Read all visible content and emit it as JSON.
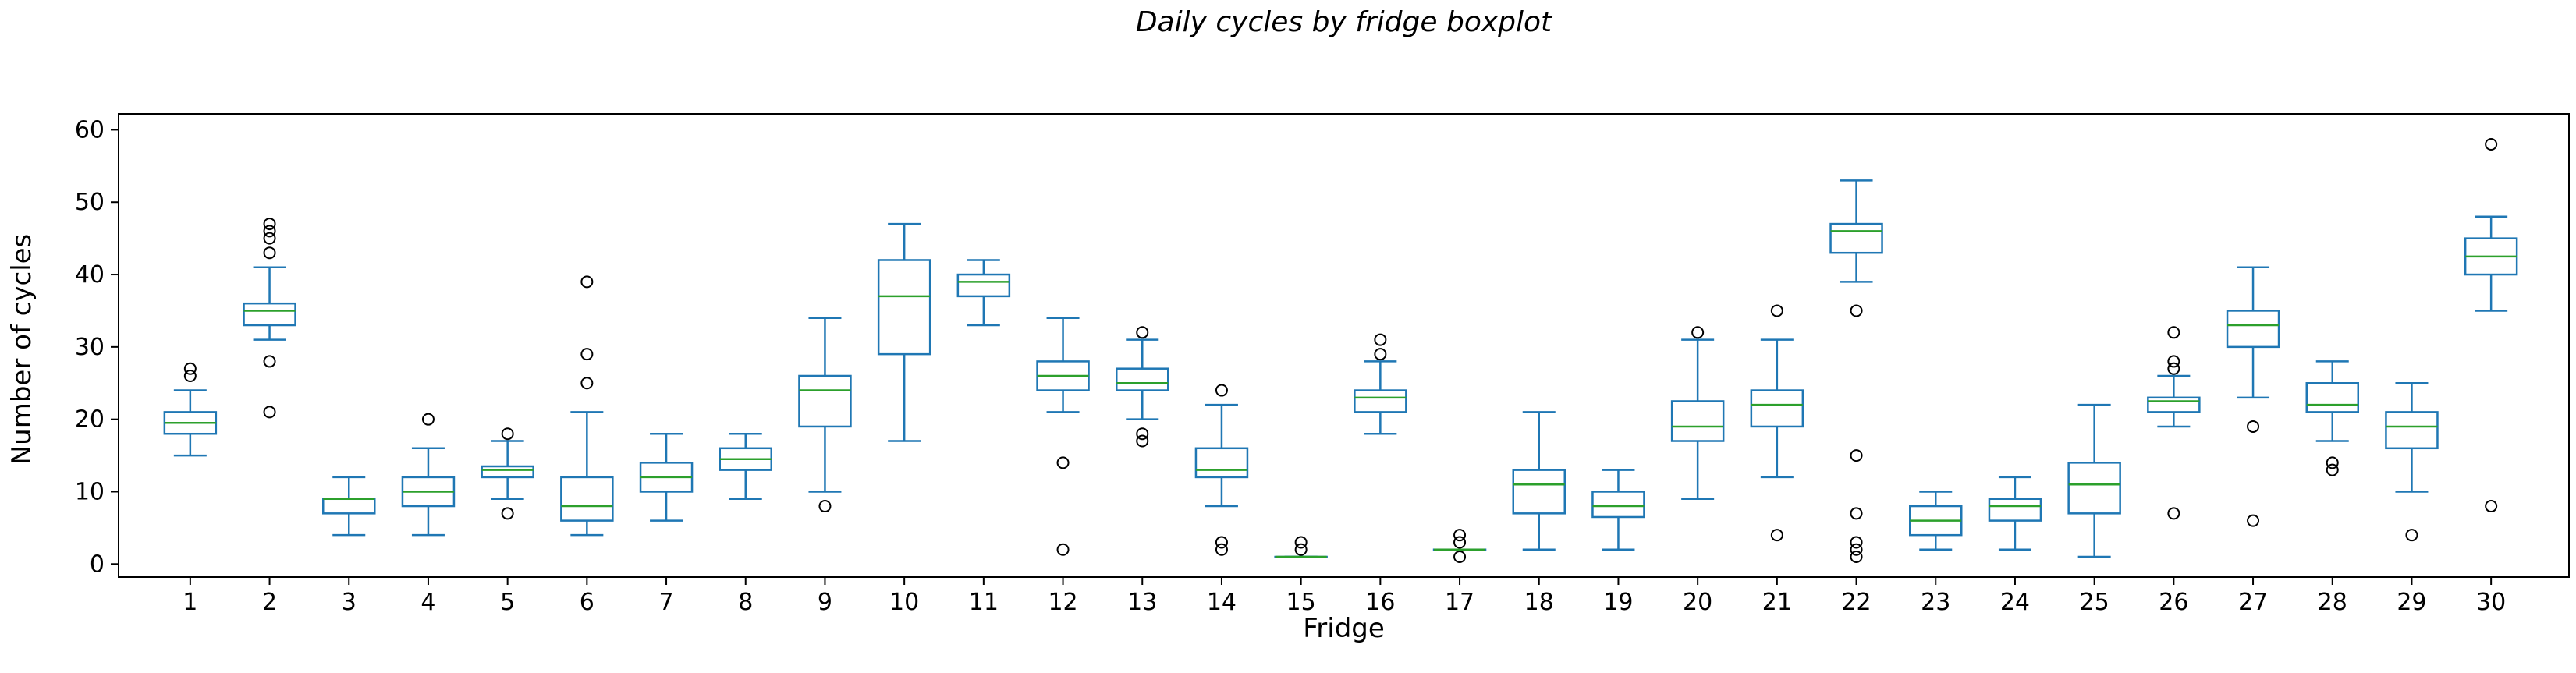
{
  "chart_data": {
    "type": "boxplot",
    "title": "Daily cycles by fridge boxplot",
    "xlabel": "Fridge",
    "ylabel": "Number of cycles",
    "ylim": [
      -2,
      62
    ],
    "yticks": [
      0,
      10,
      20,
      30,
      40,
      50,
      60
    ],
    "grid": false,
    "colors": {
      "box": "#1f77b4",
      "whisker": "#1f77b4",
      "cap": "#1f77b4",
      "median": "#2ca02c",
      "outlier": "#000000",
      "axis": "#000000"
    },
    "categories": [
      "1",
      "2",
      "3",
      "4",
      "5",
      "6",
      "7",
      "8",
      "9",
      "10",
      "11",
      "12",
      "13",
      "14",
      "15",
      "16",
      "17",
      "18",
      "19",
      "20",
      "21",
      "22",
      "23",
      "24",
      "25",
      "26",
      "27",
      "28",
      "29",
      "30"
    ],
    "boxes": [
      {
        "category": "1",
        "whisker_low": 15,
        "q1": 18,
        "median": 19.5,
        "q3": 21,
        "whisker_high": 24,
        "outliers": [
          26,
          27
        ]
      },
      {
        "category": "2",
        "whisker_low": 31,
        "q1": 33,
        "median": 35,
        "q3": 36,
        "whisker_high": 41,
        "outliers": [
          21,
          28,
          43,
          45,
          46,
          47
        ]
      },
      {
        "category": "3",
        "whisker_low": 4,
        "q1": 7,
        "median": 9,
        "q3": 9,
        "whisker_high": 12,
        "outliers": []
      },
      {
        "category": "4",
        "whisker_low": 4,
        "q1": 8,
        "median": 10,
        "q3": 12,
        "whisker_high": 16,
        "outliers": [
          20
        ]
      },
      {
        "category": "5",
        "whisker_low": 9,
        "q1": 12,
        "median": 13,
        "q3": 13.5,
        "whisker_high": 17,
        "outliers": [
          7,
          18
        ]
      },
      {
        "category": "6",
        "whisker_low": 4,
        "q1": 6,
        "median": 8,
        "q3": 12,
        "whisker_high": 21,
        "outliers": [
          25,
          29,
          39
        ]
      },
      {
        "category": "7",
        "whisker_low": 6,
        "q1": 10,
        "median": 12,
        "q3": 14,
        "whisker_high": 18,
        "outliers": []
      },
      {
        "category": "8",
        "whisker_low": 9,
        "q1": 13,
        "median": 14.5,
        "q3": 16,
        "whisker_high": 18,
        "outliers": []
      },
      {
        "category": "9",
        "whisker_low": 10,
        "q1": 19,
        "median": 24,
        "q3": 26,
        "whisker_high": 34,
        "outliers": [
          8
        ]
      },
      {
        "category": "10",
        "whisker_low": 17,
        "q1": 29,
        "median": 37,
        "q3": 42,
        "whisker_high": 47,
        "outliers": []
      },
      {
        "category": "11",
        "whisker_low": 33,
        "q1": 37,
        "median": 39,
        "q3": 40,
        "whisker_high": 42,
        "outliers": []
      },
      {
        "category": "12",
        "whisker_low": 21,
        "q1": 24,
        "median": 26,
        "q3": 28,
        "whisker_high": 34,
        "outliers": [
          2,
          14
        ]
      },
      {
        "category": "13",
        "whisker_low": 20,
        "q1": 24,
        "median": 25,
        "q3": 27,
        "whisker_high": 31,
        "outliers": [
          17,
          18,
          32
        ]
      },
      {
        "category": "14",
        "whisker_low": 8,
        "q1": 12,
        "median": 13,
        "q3": 16,
        "whisker_high": 22,
        "outliers": [
          2,
          3,
          24
        ]
      },
      {
        "category": "15",
        "whisker_low": 1,
        "q1": 1,
        "median": 1,
        "q3": 1,
        "whisker_high": 1,
        "outliers": [
          2,
          3
        ]
      },
      {
        "category": "16",
        "whisker_low": 18,
        "q1": 21,
        "median": 23,
        "q3": 24,
        "whisker_high": 28,
        "outliers": [
          29,
          31
        ]
      },
      {
        "category": "17",
        "whisker_low": 2,
        "q1": 2,
        "median": 2,
        "q3": 2,
        "whisker_high": 2,
        "outliers": [
          1,
          3,
          4
        ]
      },
      {
        "category": "18",
        "whisker_low": 2,
        "q1": 7,
        "median": 11,
        "q3": 13,
        "whisker_high": 21,
        "outliers": []
      },
      {
        "category": "19",
        "whisker_low": 2,
        "q1": 6.5,
        "median": 8,
        "q3": 10,
        "whisker_high": 13,
        "outliers": []
      },
      {
        "category": "20",
        "whisker_low": 9,
        "q1": 17,
        "median": 19,
        "q3": 22.5,
        "whisker_high": 31,
        "outliers": [
          32
        ]
      },
      {
        "category": "21",
        "whisker_low": 12,
        "q1": 19,
        "median": 22,
        "q3": 24,
        "whisker_high": 31,
        "outliers": [
          4,
          35
        ]
      },
      {
        "category": "22",
        "whisker_low": 39,
        "q1": 43,
        "median": 46,
        "q3": 47,
        "whisker_high": 53,
        "outliers": [
          35,
          15,
          7,
          3,
          2,
          1
        ]
      },
      {
        "category": "23",
        "whisker_low": 2,
        "q1": 4,
        "median": 6,
        "q3": 8,
        "whisker_high": 10,
        "outliers": []
      },
      {
        "category": "24",
        "whisker_low": 2,
        "q1": 6,
        "median": 8,
        "q3": 9,
        "whisker_high": 12,
        "outliers": []
      },
      {
        "category": "25",
        "whisker_low": 1,
        "q1": 7,
        "median": 11,
        "q3": 14,
        "whisker_high": 22,
        "outliers": []
      },
      {
        "category": "26",
        "whisker_low": 19,
        "q1": 21,
        "median": 22.5,
        "q3": 23,
        "whisker_high": 26,
        "outliers": [
          32,
          28,
          27,
          7
        ]
      },
      {
        "category": "27",
        "whisker_low": 23,
        "q1": 30,
        "median": 33,
        "q3": 35,
        "whisker_high": 41,
        "outliers": [
          19,
          6
        ]
      },
      {
        "category": "28",
        "whisker_low": 17,
        "q1": 21,
        "median": 22,
        "q3": 25,
        "whisker_high": 28,
        "outliers": [
          14,
          13
        ]
      },
      {
        "category": "29",
        "whisker_low": 10,
        "q1": 16,
        "median": 19,
        "q3": 21,
        "whisker_high": 25,
        "outliers": [
          4
        ]
      },
      {
        "category": "30",
        "whisker_low": 35,
        "q1": 40,
        "median": 42.5,
        "q3": 45,
        "whisker_high": 48,
        "outliers": [
          58,
          8
        ]
      }
    ]
  }
}
